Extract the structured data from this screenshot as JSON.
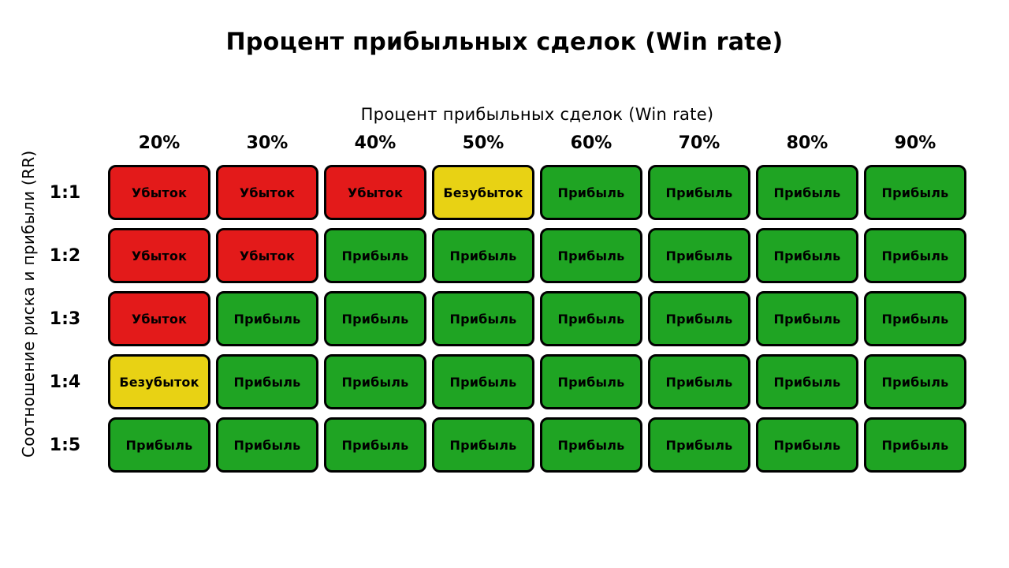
{
  "title": "Процент прибыльных сделок (Win rate)",
  "x_axis_label": "Процент прибыльных сделок (Win rate)",
  "y_axis_label": "Соотношение риска и прибыли (RR)",
  "colors": {
    "loss": "#E31A1A",
    "breakeven": "#E8D214",
    "profit": "#1FA423",
    "border": "#000000",
    "background": "#FFFFFF"
  },
  "chart_data": {
    "type": "heatmap",
    "title": "Процент прибыльных сделок (Win rate)",
    "xlabel": "Процент прибыльных сделок (Win rate)",
    "ylabel": "Соотношение риска и прибыли (RR)",
    "columns": [
      "20%",
      "30%",
      "40%",
      "50%",
      "60%",
      "70%",
      "80%",
      "90%"
    ],
    "rows": [
      {
        "label": "1:1",
        "cells": [
          "Убыток",
          "Убыток",
          "Убыток",
          "Безубыток",
          "Прибыль",
          "Прибыль",
          "Прибыль",
          "Прибыль"
        ],
        "statuses": [
          "loss",
          "loss",
          "loss",
          "breakeven",
          "profit",
          "profit",
          "profit",
          "profit"
        ]
      },
      {
        "label": "1:2",
        "cells": [
          "Убыток",
          "Убыток",
          "Прибыль",
          "Прибыль",
          "Прибыль",
          "Прибыль",
          "Прибыль",
          "Прибыль"
        ],
        "statuses": [
          "loss",
          "loss",
          "profit",
          "profit",
          "profit",
          "profit",
          "profit",
          "profit"
        ]
      },
      {
        "label": "1:3",
        "cells": [
          "Убыток",
          "Прибыль",
          "Прибыль",
          "Прибыль",
          "Прибыль",
          "Прибыль",
          "Прибыль",
          "Прибыль"
        ],
        "statuses": [
          "loss",
          "profit",
          "profit",
          "profit",
          "profit",
          "profit",
          "profit",
          "profit"
        ]
      },
      {
        "label": "1:4",
        "cells": [
          "Безубыток",
          "Прибыль",
          "Прибыль",
          "Прибыль",
          "Прибыль",
          "Прибыль",
          "Прибыль",
          "Прибыль"
        ],
        "statuses": [
          "breakeven",
          "profit",
          "profit",
          "profit",
          "profit",
          "profit",
          "profit",
          "profit"
        ]
      },
      {
        "label": "1:5",
        "cells": [
          "Прибыль",
          "Прибыль",
          "Прибыль",
          "Прибыль",
          "Прибыль",
          "Прибыль",
          "Прибыль",
          "Прибыль"
        ],
        "statuses": [
          "profit",
          "profit",
          "profit",
          "profit",
          "profit",
          "profit",
          "profit",
          "profit"
        ]
      }
    ]
  }
}
